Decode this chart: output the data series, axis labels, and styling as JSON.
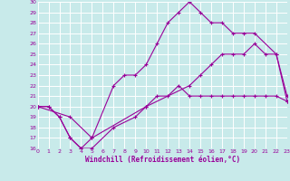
{
  "xlabel": "Windchill (Refroidissement éolien,°C)",
  "bg_color": "#c8eaea",
  "line_color": "#990099",
  "grid_color": "#ffffff",
  "xlim": [
    0,
    23
  ],
  "ylim": [
    16,
    30
  ],
  "xticks": [
    0,
    1,
    2,
    3,
    4,
    5,
    6,
    7,
    8,
    9,
    10,
    11,
    12,
    13,
    14,
    15,
    16,
    17,
    18,
    19,
    20,
    21,
    22,
    23
  ],
  "yticks": [
    16,
    17,
    18,
    19,
    20,
    21,
    22,
    23,
    24,
    25,
    26,
    27,
    28,
    29,
    30
  ],
  "line1_x": [
    0,
    1,
    2,
    3,
    4,
    5,
    7,
    9,
    10,
    11,
    12,
    13,
    14,
    15,
    16,
    17,
    18,
    19,
    20,
    21,
    22,
    23
  ],
  "line1_y": [
    20,
    20,
    19,
    17,
    16,
    16,
    18,
    19,
    20,
    21,
    21,
    22,
    21,
    21,
    21,
    21,
    21,
    21,
    21,
    21,
    21,
    20.5
  ],
  "line2_x": [
    0,
    1,
    2,
    3,
    4,
    5,
    7,
    8,
    9,
    10,
    11,
    12,
    13,
    14,
    15,
    16,
    17,
    18,
    19,
    20,
    22,
    23
  ],
  "line2_y": [
    20,
    20,
    19,
    17,
    16,
    17,
    22,
    23,
    23,
    24,
    26,
    28,
    29,
    30,
    29,
    28,
    28,
    27,
    27,
    27,
    25,
    21
  ],
  "line3_x": [
    0,
    3,
    5,
    10,
    14,
    15,
    16,
    17,
    18,
    19,
    20,
    21,
    22,
    23
  ],
  "line3_y": [
    20,
    19,
    17,
    20,
    22,
    23,
    24,
    25,
    25,
    25,
    26,
    25,
    25,
    20.5
  ]
}
